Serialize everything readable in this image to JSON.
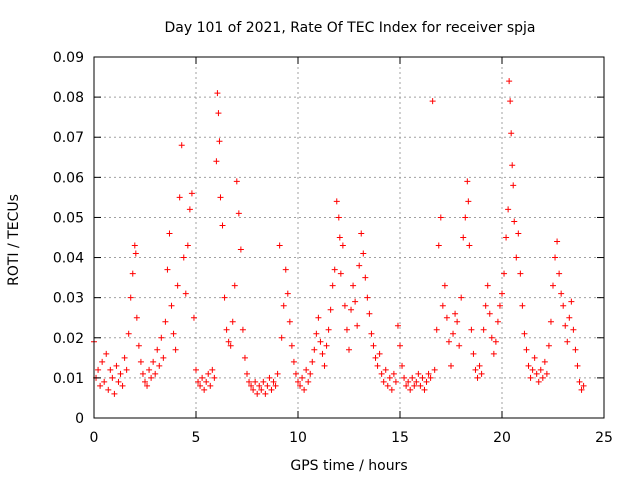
{
  "chart_data": {
    "type": "scatter",
    "title": "Day 101 of 2021, Rate Of TEC Index for receiver spja",
    "xlabel": "GPS time / hours",
    "ylabel": "ROTI / TECUs",
    "xlim": [
      0,
      25
    ],
    "ylim": [
      0,
      0.09
    ],
    "xticks": [
      0,
      5,
      10,
      15,
      20,
      25
    ],
    "xtick_labels": [
      "0",
      "5",
      "10",
      "15",
      "20",
      "25"
    ],
    "yticks": [
      0,
      0.01,
      0.02,
      0.03,
      0.04,
      0.05,
      0.06,
      0.07,
      0.08,
      0.09
    ],
    "ytick_labels": [
      "0",
      "0.01",
      "0.02",
      "0.03",
      "0.04",
      "0.05",
      "0.06",
      "0.07",
      "0.08",
      "0.09"
    ],
    "grid": true,
    "marker": "+",
    "color": "#ff0000",
    "series": [
      {
        "name": "ROTI",
        "points": [
          [
            0.0,
            0.019
          ],
          [
            0.1,
            0.01
          ],
          [
            0.2,
            0.012
          ],
          [
            0.3,
            0.008
          ],
          [
            0.4,
            0.014
          ],
          [
            0.5,
            0.009
          ],
          [
            0.6,
            0.016
          ],
          [
            0.7,
            0.007
          ],
          [
            0.8,
            0.012
          ],
          [
            0.9,
            0.01
          ],
          [
            1.0,
            0.006
          ],
          [
            1.1,
            0.013
          ],
          [
            1.2,
            0.009
          ],
          [
            1.3,
            0.011
          ],
          [
            1.4,
            0.008
          ],
          [
            1.5,
            0.015
          ],
          [
            1.6,
            0.012
          ],
          [
            1.7,
            0.021
          ],
          [
            1.8,
            0.03
          ],
          [
            1.9,
            0.036
          ],
          [
            2.0,
            0.043
          ],
          [
            2.05,
            0.041
          ],
          [
            2.1,
            0.025
          ],
          [
            2.2,
            0.018
          ],
          [
            2.3,
            0.014
          ],
          [
            2.4,
            0.011
          ],
          [
            2.5,
            0.009
          ],
          [
            2.6,
            0.008
          ],
          [
            2.7,
            0.012
          ],
          [
            2.8,
            0.01
          ],
          [
            2.9,
            0.014
          ],
          [
            3.0,
            0.011
          ],
          [
            3.1,
            0.017
          ],
          [
            3.2,
            0.013
          ],
          [
            3.3,
            0.02
          ],
          [
            3.4,
            0.015
          ],
          [
            3.5,
            0.024
          ],
          [
            3.6,
            0.037
          ],
          [
            3.7,
            0.046
          ],
          [
            3.8,
            0.028
          ],
          [
            3.9,
            0.021
          ],
          [
            4.0,
            0.017
          ],
          [
            4.1,
            0.033
          ],
          [
            4.2,
            0.055
          ],
          [
            4.3,
            0.068
          ],
          [
            4.4,
            0.04
          ],
          [
            4.5,
            0.031
          ],
          [
            4.6,
            0.043
          ],
          [
            4.7,
            0.052
          ],
          [
            4.8,
            0.056
          ],
          [
            4.9,
            0.025
          ],
          [
            5.0,
            0.012
          ],
          [
            5.1,
            0.009
          ],
          [
            5.2,
            0.008
          ],
          [
            5.3,
            0.01
          ],
          [
            5.4,
            0.007
          ],
          [
            5.5,
            0.009
          ],
          [
            5.6,
            0.011
          ],
          [
            5.7,
            0.008
          ],
          [
            5.8,
            0.012
          ],
          [
            5.9,
            0.01
          ],
          [
            6.0,
            0.064
          ],
          [
            6.05,
            0.081
          ],
          [
            6.1,
            0.076
          ],
          [
            6.15,
            0.069
          ],
          [
            6.2,
            0.055
          ],
          [
            6.3,
            0.048
          ],
          [
            6.4,
            0.03
          ],
          [
            6.5,
            0.022
          ],
          [
            6.6,
            0.019
          ],
          [
            6.7,
            0.018
          ],
          [
            6.8,
            0.024
          ],
          [
            6.9,
            0.033
          ],
          [
            7.0,
            0.059
          ],
          [
            7.1,
            0.051
          ],
          [
            7.2,
            0.042
          ],
          [
            7.3,
            0.022
          ],
          [
            7.4,
            0.015
          ],
          [
            7.5,
            0.011
          ],
          [
            7.6,
            0.009
          ],
          [
            7.7,
            0.008
          ],
          [
            7.8,
            0.007
          ],
          [
            7.9,
            0.009
          ],
          [
            8.0,
            0.006
          ],
          [
            8.1,
            0.008
          ],
          [
            8.2,
            0.007
          ],
          [
            8.3,
            0.009
          ],
          [
            8.4,
            0.006
          ],
          [
            8.5,
            0.008
          ],
          [
            8.6,
            0.01
          ],
          [
            8.7,
            0.007
          ],
          [
            8.8,
            0.009
          ],
          [
            8.9,
            0.008
          ],
          [
            9.0,
            0.011
          ],
          [
            9.1,
            0.043
          ],
          [
            9.2,
            0.02
          ],
          [
            9.3,
            0.028
          ],
          [
            9.4,
            0.037
          ],
          [
            9.5,
            0.031
          ],
          [
            9.6,
            0.024
          ],
          [
            9.7,
            0.018
          ],
          [
            9.8,
            0.014
          ],
          [
            9.9,
            0.011
          ],
          [
            10.0,
            0.009
          ],
          [
            10.1,
            0.008
          ],
          [
            10.2,
            0.01
          ],
          [
            10.3,
            0.007
          ],
          [
            10.4,
            0.012
          ],
          [
            10.5,
            0.009
          ],
          [
            10.6,
            0.011
          ],
          [
            10.7,
            0.014
          ],
          [
            10.8,
            0.017
          ],
          [
            10.9,
            0.021
          ],
          [
            11.0,
            0.025
          ],
          [
            11.1,
            0.019
          ],
          [
            11.2,
            0.016
          ],
          [
            11.3,
            0.013
          ],
          [
            11.4,
            0.018
          ],
          [
            11.5,
            0.022
          ],
          [
            11.6,
            0.027
          ],
          [
            11.7,
            0.033
          ],
          [
            11.8,
            0.037
          ],
          [
            11.9,
            0.054
          ],
          [
            12.0,
            0.05
          ],
          [
            12.05,
            0.045
          ],
          [
            12.1,
            0.036
          ],
          [
            12.2,
            0.043
          ],
          [
            12.3,
            0.028
          ],
          [
            12.4,
            0.022
          ],
          [
            12.5,
            0.017
          ],
          [
            12.6,
            0.027
          ],
          [
            12.7,
            0.033
          ],
          [
            12.8,
            0.029
          ],
          [
            12.9,
            0.023
          ],
          [
            13.0,
            0.038
          ],
          [
            13.1,
            0.046
          ],
          [
            13.2,
            0.041
          ],
          [
            13.3,
            0.035
          ],
          [
            13.4,
            0.03
          ],
          [
            13.5,
            0.026
          ],
          [
            13.6,
            0.021
          ],
          [
            13.7,
            0.018
          ],
          [
            13.8,
            0.015
          ],
          [
            13.9,
            0.013
          ],
          [
            14.0,
            0.016
          ],
          [
            14.1,
            0.011
          ],
          [
            14.2,
            0.009
          ],
          [
            14.3,
            0.012
          ],
          [
            14.4,
            0.008
          ],
          [
            14.5,
            0.01
          ],
          [
            14.6,
            0.007
          ],
          [
            14.7,
            0.011
          ],
          [
            14.8,
            0.009
          ],
          [
            14.9,
            0.023
          ],
          [
            15.0,
            0.018
          ],
          [
            15.1,
            0.013
          ],
          [
            15.2,
            0.01
          ],
          [
            15.3,
            0.008
          ],
          [
            15.4,
            0.009
          ],
          [
            15.5,
            0.007
          ],
          [
            15.6,
            0.01
          ],
          [
            15.7,
            0.008
          ],
          [
            15.8,
            0.009
          ],
          [
            15.9,
            0.011
          ],
          [
            16.0,
            0.008
          ],
          [
            16.1,
            0.01
          ],
          [
            16.2,
            0.007
          ],
          [
            16.3,
            0.009
          ],
          [
            16.4,
            0.011
          ],
          [
            16.5,
            0.01
          ],
          [
            16.6,
            0.079
          ],
          [
            16.7,
            0.012
          ],
          [
            16.8,
            0.022
          ],
          [
            16.9,
            0.043
          ],
          [
            17.0,
            0.05
          ],
          [
            17.1,
            0.028
          ],
          [
            17.2,
            0.033
          ],
          [
            17.3,
            0.025
          ],
          [
            17.4,
            0.019
          ],
          [
            17.5,
            0.013
          ],
          [
            17.6,
            0.021
          ],
          [
            17.7,
            0.026
          ],
          [
            17.8,
            0.024
          ],
          [
            17.9,
            0.018
          ],
          [
            18.0,
            0.03
          ],
          [
            18.1,
            0.045
          ],
          [
            18.2,
            0.05
          ],
          [
            18.3,
            0.059
          ],
          [
            18.35,
            0.054
          ],
          [
            18.4,
            0.043
          ],
          [
            18.5,
            0.022
          ],
          [
            18.6,
            0.016
          ],
          [
            18.7,
            0.012
          ],
          [
            18.8,
            0.01
          ],
          [
            18.9,
            0.013
          ],
          [
            19.0,
            0.011
          ],
          [
            19.1,
            0.022
          ],
          [
            19.2,
            0.028
          ],
          [
            19.3,
            0.033
          ],
          [
            19.4,
            0.026
          ],
          [
            19.5,
            0.02
          ],
          [
            19.6,
            0.016
          ],
          [
            19.7,
            0.019
          ],
          [
            19.8,
            0.024
          ],
          [
            19.9,
            0.028
          ],
          [
            20.0,
            0.031
          ],
          [
            20.1,
            0.036
          ],
          [
            20.2,
            0.045
          ],
          [
            20.3,
            0.052
          ],
          [
            20.35,
            0.084
          ],
          [
            20.4,
            0.079
          ],
          [
            20.45,
            0.071
          ],
          [
            20.5,
            0.063
          ],
          [
            20.55,
            0.058
          ],
          [
            20.6,
            0.049
          ],
          [
            20.7,
            0.04
          ],
          [
            20.8,
            0.046
          ],
          [
            20.9,
            0.036
          ],
          [
            21.0,
            0.028
          ],
          [
            21.1,
            0.021
          ],
          [
            21.2,
            0.017
          ],
          [
            21.3,
            0.013
          ],
          [
            21.4,
            0.01
          ],
          [
            21.5,
            0.012
          ],
          [
            21.6,
            0.015
          ],
          [
            21.7,
            0.011
          ],
          [
            21.8,
            0.009
          ],
          [
            21.9,
            0.012
          ],
          [
            22.0,
            0.01
          ],
          [
            22.1,
            0.014
          ],
          [
            22.2,
            0.011
          ],
          [
            22.3,
            0.018
          ],
          [
            22.4,
            0.024
          ],
          [
            22.5,
            0.033
          ],
          [
            22.6,
            0.04
          ],
          [
            22.7,
            0.044
          ],
          [
            22.8,
            0.036
          ],
          [
            22.9,
            0.031
          ],
          [
            23.0,
            0.028
          ],
          [
            23.1,
            0.023
          ],
          [
            23.2,
            0.019
          ],
          [
            23.3,
            0.025
          ],
          [
            23.4,
            0.029
          ],
          [
            23.5,
            0.022
          ],
          [
            23.6,
            0.017
          ],
          [
            23.7,
            0.013
          ],
          [
            23.8,
            0.009
          ],
          [
            23.9,
            0.007
          ],
          [
            24.0,
            0.008
          ]
        ]
      }
    ]
  }
}
